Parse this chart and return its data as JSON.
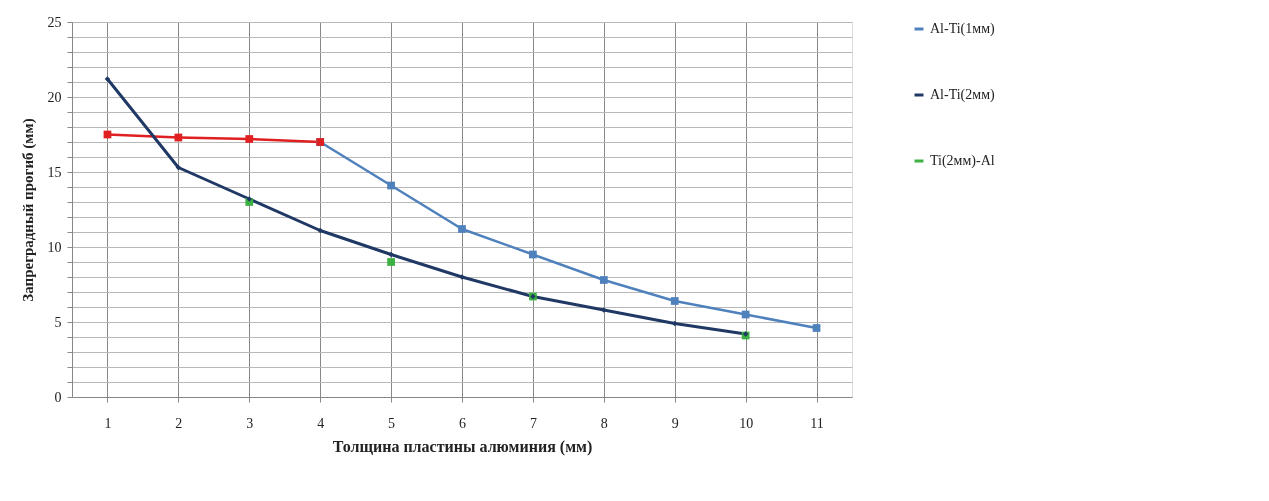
{
  "chart_data": {
    "type": "line",
    "xlabel": "Толщина пластины алюминия (мм)",
    "ylabel": "Запреградный прогиб (мм)",
    "categories": [
      "1",
      "2",
      "3",
      "4",
      "5",
      "6",
      "7",
      "8",
      "9",
      "10",
      "11"
    ],
    "series": [
      {
        "color": "#e02020",
        "marker": "square",
        "values": [
          17.5,
          17.3,
          17.2,
          17.0,
          null,
          null,
          null,
          null,
          null,
          null,
          null
        ]
      },
      {
        "name": "Al-Ti(1мм)",
        "color": "#4f81bd",
        "marker": "square",
        "values": [
          null,
          null,
          null,
          17.0,
          14.1,
          11.2,
          9.5,
          7.8,
          6.4,
          5.5,
          4.6
        ]
      },
      {
        "name": "Al-Ti(2мм)",
        "color": "#1f3864",
        "marker": "diamond",
        "values": [
          21.2,
          15.3,
          13.2,
          11.1,
          9.5,
          8.0,
          6.7,
          5.8,
          4.9,
          4.2,
          null
        ]
      },
      {
        "name": "Ti(2мм)-Al",
        "type": "scatter",
        "color": "#3cb043",
        "marker": "square",
        "values": [
          null,
          null,
          13.0,
          null,
          9.0,
          null,
          6.7,
          null,
          null,
          4.1,
          null
        ]
      }
    ],
    "ylim": [
      0,
      25
    ],
    "yticks": [
      0,
      5,
      10,
      15,
      20,
      25
    ],
    "grid": true,
    "legend": "right",
    "line_style": "solid"
  }
}
